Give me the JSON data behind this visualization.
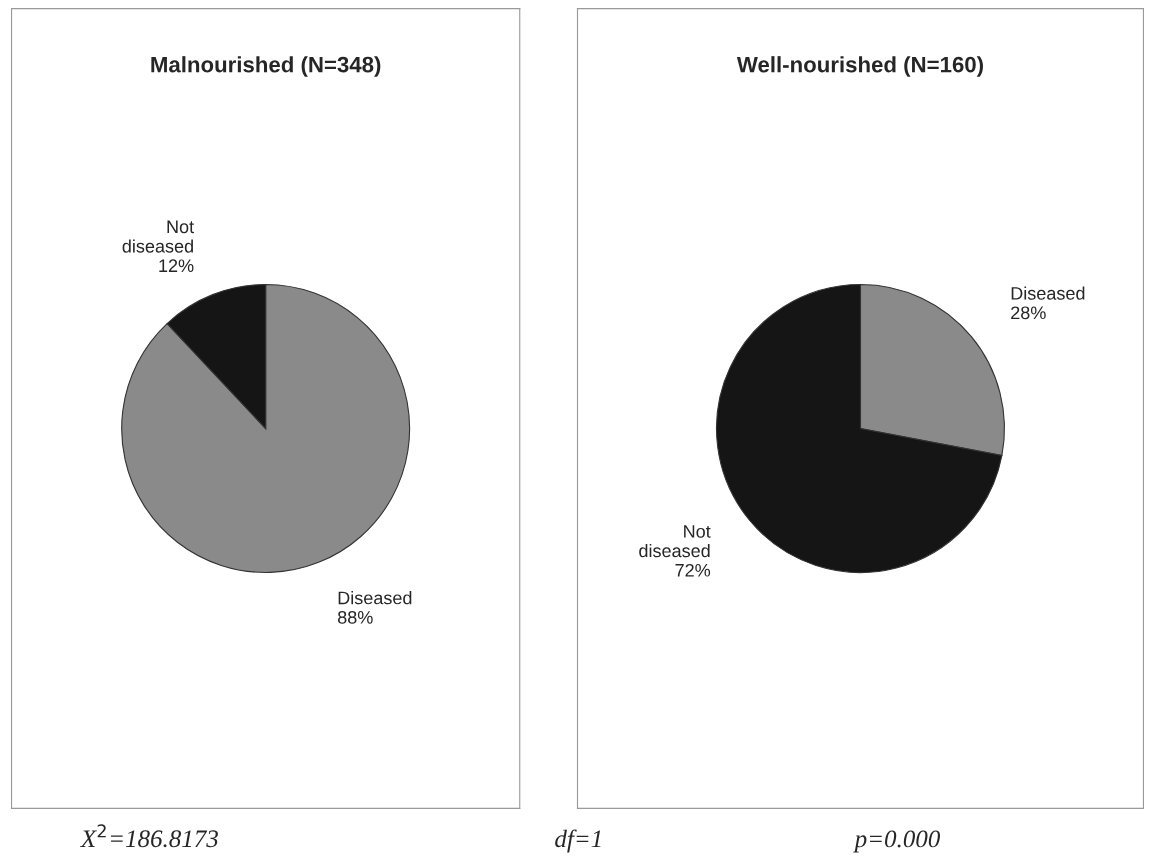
{
  "chart_data": [
    {
      "type": "pie",
      "title": "Malnourished (N=348)",
      "categories": [
        "Diseased",
        "Not diseased"
      ],
      "values": [
        88,
        12
      ],
      "value_labels": [
        "88%",
        "12%"
      ],
      "colors": [
        "#8a8a8a",
        "#151515"
      ],
      "annotations": [
        "X$^{2}$=186.8173",
        "df=1",
        "p=0.000"
      ]
    },
    {
      "type": "pie",
      "title": "Well-nourished (N=160)",
      "categories": [
        "Diseased",
        "Not diseased"
      ],
      "values": [
        28,
        72
      ],
      "value_labels": [
        "28%",
        "72%"
      ],
      "colors": [
        "#8a8a8a",
        "#151515"
      ]
    }
  ]
}
